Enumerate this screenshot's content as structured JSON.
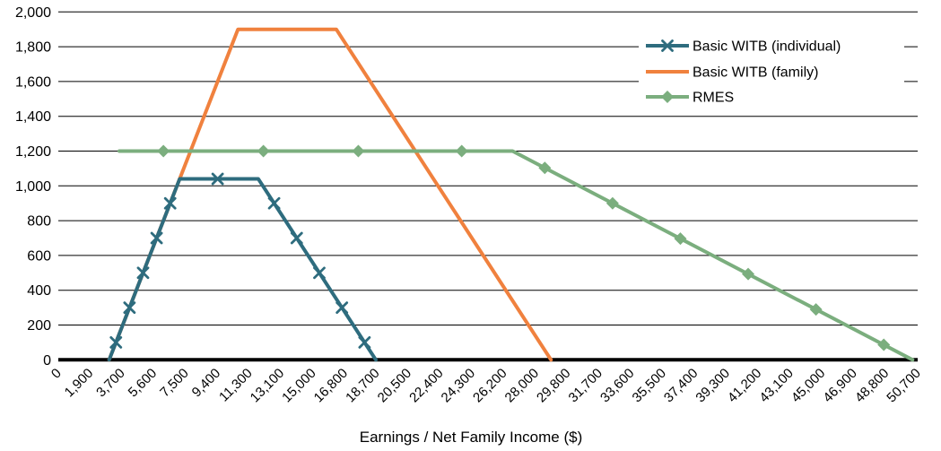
{
  "chart_data": {
    "type": "line",
    "title": "",
    "xlabel": "Earnings / Net Family Income ($)",
    "ylabel": "",
    "ylim": [
      0,
      2000
    ],
    "y_tick_step": 200,
    "y_tick_labels": [
      "0",
      "200",
      "400",
      "600",
      "800",
      "1,000",
      "1,200",
      "1,400",
      "1,600",
      "1,800",
      "2,000"
    ],
    "x_tick_labels": [
      "0",
      "1,900",
      "3,700",
      "5,600",
      "7,500",
      "9,400",
      "11,300",
      "13,100",
      "15,000",
      "16,800",
      "18,700",
      "20,500",
      "22,400",
      "24,300",
      "26,200",
      "28,000",
      "29,800",
      "31,700",
      "33,600",
      "35,500",
      "37,400",
      "39,300",
      "41,200",
      "43,100",
      "45,000",
      "46,900",
      "48,800",
      "50,700"
    ],
    "x_axis_value_max": 50700,
    "grid": "horizontal",
    "legend_position": "top-right",
    "legend_background": "#ffffff",
    "axis_color": "#000000",
    "gridline_color": "#000000",
    "series": [
      {
        "name": "Basic WITB (individual)",
        "color": "#2E6C7E",
        "marker": "x-cross",
        "points": [
          [
            3000,
            0
          ],
          [
            7160,
            1040
          ],
          [
            11800,
            1040
          ],
          [
            18733,
            0
          ]
        ],
        "marker_x": [
          3400,
          4200,
          5000,
          5800,
          6600,
          9400,
          12733,
          14067,
          15400,
          16733,
          18067
        ]
      },
      {
        "name": "Basic WITB (family)",
        "color": "#F0813E",
        "marker": "none",
        "points": [
          [
            3000,
            0
          ],
          [
            10600,
            1900
          ],
          [
            16400,
            1900
          ],
          [
            29067,
            0
          ]
        ],
        "marker_x": []
      },
      {
        "name": "RMES",
        "color": "#7BAE7E",
        "marker": "diamond",
        "points": [
          [
            3600,
            1200
          ],
          [
            26800,
            1200
          ],
          [
            50400,
            0
          ]
        ],
        "marker_x": [
          6200,
          12100,
          17700,
          23800,
          28700,
          32700,
          36700,
          40700,
          44700,
          48700
        ]
      }
    ],
    "z_order": [
      1,
      2,
      0
    ]
  }
}
